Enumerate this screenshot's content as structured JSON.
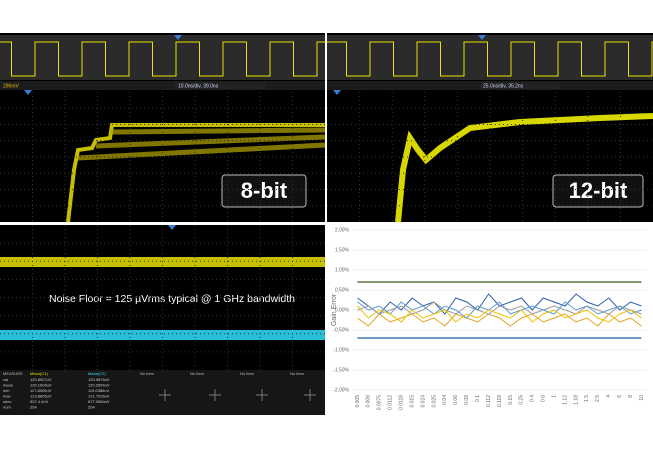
{
  "panels": {
    "top_left": {
      "scale": "296mV",
      "timebase": "10.0ns/div, 39.0ns",
      "badge": "8-bit"
    },
    "top_right": {
      "timebase": "25.0ns/div, 35.2ns",
      "badge": "12-bit"
    },
    "bottom_left": {
      "caption": "Noise Floor = 125 µVrms typical @ 1 GHz bandwidth",
      "table": {
        "header": [
          "MEASURE",
          "Mean(C1)",
          "Mean(C2)",
          "No Item",
          "No Item",
          "No Item",
          "No Item"
        ],
        "rows": [
          [
            "val",
            "120.8907uV",
            "120.9876uV"
          ],
          [
            "mean",
            "120.1009uV",
            "120.2854uV"
          ],
          [
            "min",
            "117.8009uV",
            "119.0386uV"
          ],
          [
            "max",
            "123.8805uV",
            "121.7026uV"
          ],
          [
            "sdev",
            "907.4.4nV",
            "677.0584nV"
          ],
          [
            "num",
            "254",
            "254"
          ]
        ]
      }
    }
  },
  "chart_data": {
    "type": "line",
    "y_label": "Gain Error",
    "categories": [
      "0.005",
      "0.006",
      "0.0075",
      "0.0112",
      "0.0118",
      "0.015",
      "0.024",
      "0.025",
      "0.04",
      "0.06",
      "0.08",
      "0.1",
      "0.112",
      "0.118",
      "0.15",
      "0.25",
      "0.4",
      "0.6",
      "1",
      "1.12",
      "1.18",
      "1.5",
      "2.5",
      "4",
      "6",
      "8",
      "10"
    ],
    "ylim": [
      -2,
      2
    ],
    "yticks": [
      {
        "value": 2,
        "label": "2.00%"
      },
      {
        "value": 1.5,
        "label": "1.50%"
      },
      {
        "value": 1,
        "label": "1.00%"
      },
      {
        "value": 0.5,
        "label": "0.50%"
      },
      {
        "value": 0,
        "label": "0.00%"
      },
      {
        "value": -0.5,
        "label": "-0.50%"
      },
      {
        "value": -1,
        "label": "-1.00%"
      },
      {
        "value": -1.5,
        "label": "-1.50%"
      },
      {
        "value": -2,
        "label": "-2.00%"
      }
    ],
    "grid": true,
    "series": [
      {
        "color": "#3d5a1a",
        "values": [
          0.7,
          0.7,
          0.7,
          0.7,
          0.7,
          0.7,
          0.7,
          0.7,
          0.7,
          0.7,
          0.7,
          0.7,
          0.7,
          0.7,
          0.7,
          0.7,
          0.7,
          0.7,
          0.7,
          0.7,
          0.7,
          0.7,
          0.7,
          0.7,
          0.7,
          0.7,
          0.7
        ]
      },
      {
        "color": "#1f5fa0",
        "values": [
          -0.7,
          -0.7,
          -0.7,
          -0.7,
          -0.7,
          -0.7,
          -0.7,
          -0.7,
          -0.7,
          -0.7,
          -0.7,
          -0.7,
          -0.7,
          -0.7,
          -0.7,
          -0.7,
          -0.7,
          -0.7,
          -0.7,
          -0.7,
          -0.7,
          -0.7,
          -0.7,
          -0.7,
          -0.7,
          -0.7,
          -0.7
        ]
      },
      {
        "color": "#2a5caa",
        "values": [
          0.3,
          0.1,
          -0.1,
          0.2,
          0.0,
          0.3,
          0.1,
          0.2,
          -0.1,
          0.3,
          0.2,
          0.0,
          0.4,
          0.1,
          0.2,
          0.3,
          0.0,
          0.3,
          0.2,
          0.1,
          0.4,
          0.2,
          0.1,
          0.3,
          0.0,
          0.2,
          0.1
        ]
      },
      {
        "color": "#e6a020",
        "values": [
          -0.2,
          -0.4,
          -0.1,
          -0.3,
          -0.2,
          -0.1,
          -0.3,
          -0.2,
          -0.4,
          -0.1,
          -0.2,
          -0.3,
          -0.1,
          -0.2,
          -0.4,
          -0.2,
          -0.1,
          -0.3,
          -0.2,
          -0.1,
          -0.3,
          -0.2,
          -0.4,
          -0.1,
          -0.3,
          -0.2,
          -0.4
        ]
      },
      {
        "color": "#9a9a9a",
        "values": [
          0.0,
          0.1,
          -0.1,
          0.0,
          0.1,
          -0.1,
          0.0,
          0.2,
          0.0,
          -0.1,
          0.1,
          0.0,
          -0.1,
          0.1,
          0.0,
          0.1,
          -0.1,
          0.0,
          0.1,
          0.0,
          -0.1,
          0.1,
          0.0,
          -0.1,
          0.1,
          0.0,
          -0.1
        ]
      },
      {
        "color": "#5b9bd5",
        "values": [
          0.2,
          0.0,
          0.1,
          -0.1,
          0.2,
          0.0,
          0.1,
          -0.1,
          0.1,
          0.0,
          -0.2,
          0.1,
          0.0,
          0.2,
          -0.1,
          0.0,
          0.1,
          0.0,
          -0.1,
          0.2,
          0.0,
          0.1,
          -0.1,
          0.0,
          0.1,
          -0.1,
          0.0
        ]
      },
      {
        "color": "#f0c000",
        "values": [
          0.1,
          -0.2,
          0.0,
          -0.1,
          -0.3,
          0.0,
          -0.2,
          -0.1,
          0.0,
          -0.3,
          -0.1,
          -0.2,
          0.0,
          -0.1,
          -0.2,
          0.0,
          -0.3,
          -0.1,
          0.0,
          -0.2,
          -0.1,
          0.0,
          -0.2,
          -0.3,
          -0.1,
          0.0,
          -0.2
        ]
      }
    ]
  }
}
